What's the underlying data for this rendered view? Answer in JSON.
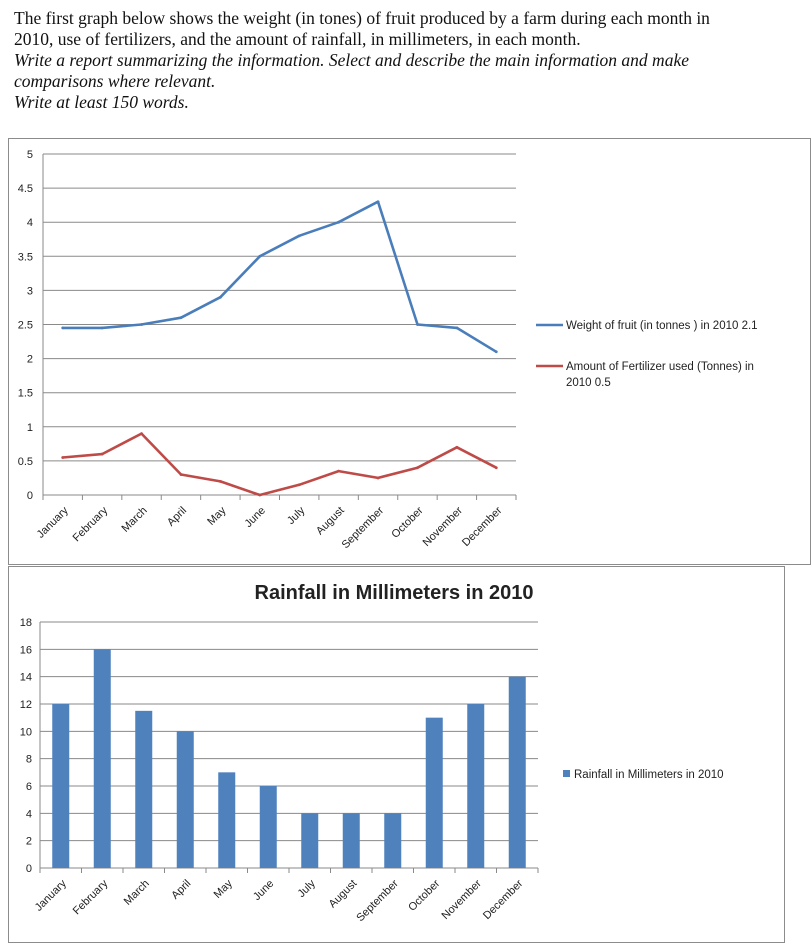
{
  "prompt": {
    "line1": "The first graph below shows the weight (in tones) of fruit produced by a farm during each month in",
    "line2": "2010, use of fertilizers, and the amount of rainfall, in millimeters, in each month.",
    "line3": "Write a report summarizing the information. Select and describe the main  information and make",
    "line4": "comparisons where relevant.",
    "line5": "Write at least 150 words."
  },
  "chart_data": [
    {
      "type": "line",
      "title": "",
      "categories": [
        "January",
        "February",
        "March",
        "April",
        "May",
        "June",
        "July",
        "August",
        "September",
        "October",
        "November",
        "December"
      ],
      "series": [
        {
          "name": "Weight of fruit (in tonnes ) in 2010 2.1",
          "color": "#4a7ebb",
          "values": [
            2.45,
            2.45,
            2.5,
            2.6,
            2.9,
            3.5,
            3.8,
            4.0,
            4.3,
            2.5,
            2.45,
            2.1
          ]
        },
        {
          "name": "Amount of Fertilizer used (Tonnes) in 2010 0.5",
          "color": "#be4b48",
          "values": [
            0.55,
            0.6,
            0.9,
            0.3,
            0.2,
            0.0,
            0.15,
            0.35,
            0.25,
            0.4,
            0.7,
            0.4
          ]
        }
      ],
      "yticks": [
        "0",
        "0.5",
        "1",
        "1.5",
        "2",
        "2.5",
        "3",
        "3.5",
        "4",
        "4.5",
        "5"
      ],
      "ylim": [
        0,
        5
      ],
      "grid": true,
      "legend": "right"
    },
    {
      "type": "bar",
      "title": "Rainfall in Millimeters in 2010",
      "categories": [
        "January",
        "February",
        "March",
        "April",
        "May",
        "June",
        "July",
        "August",
        "September",
        "October",
        "November",
        "December"
      ],
      "series": [
        {
          "name": "Rainfall in Millimeters in 2010",
          "color": "#4f81bd",
          "values": [
            12,
            16,
            11.5,
            10,
            7,
            6,
            4,
            4,
            4,
            11,
            12,
            14
          ]
        }
      ],
      "yticks": [
        "0",
        "2",
        "4",
        "6",
        "8",
        "10",
        "12",
        "14",
        "16",
        "18"
      ],
      "ylim": [
        0,
        18
      ],
      "grid": true,
      "legend": "right"
    }
  ]
}
